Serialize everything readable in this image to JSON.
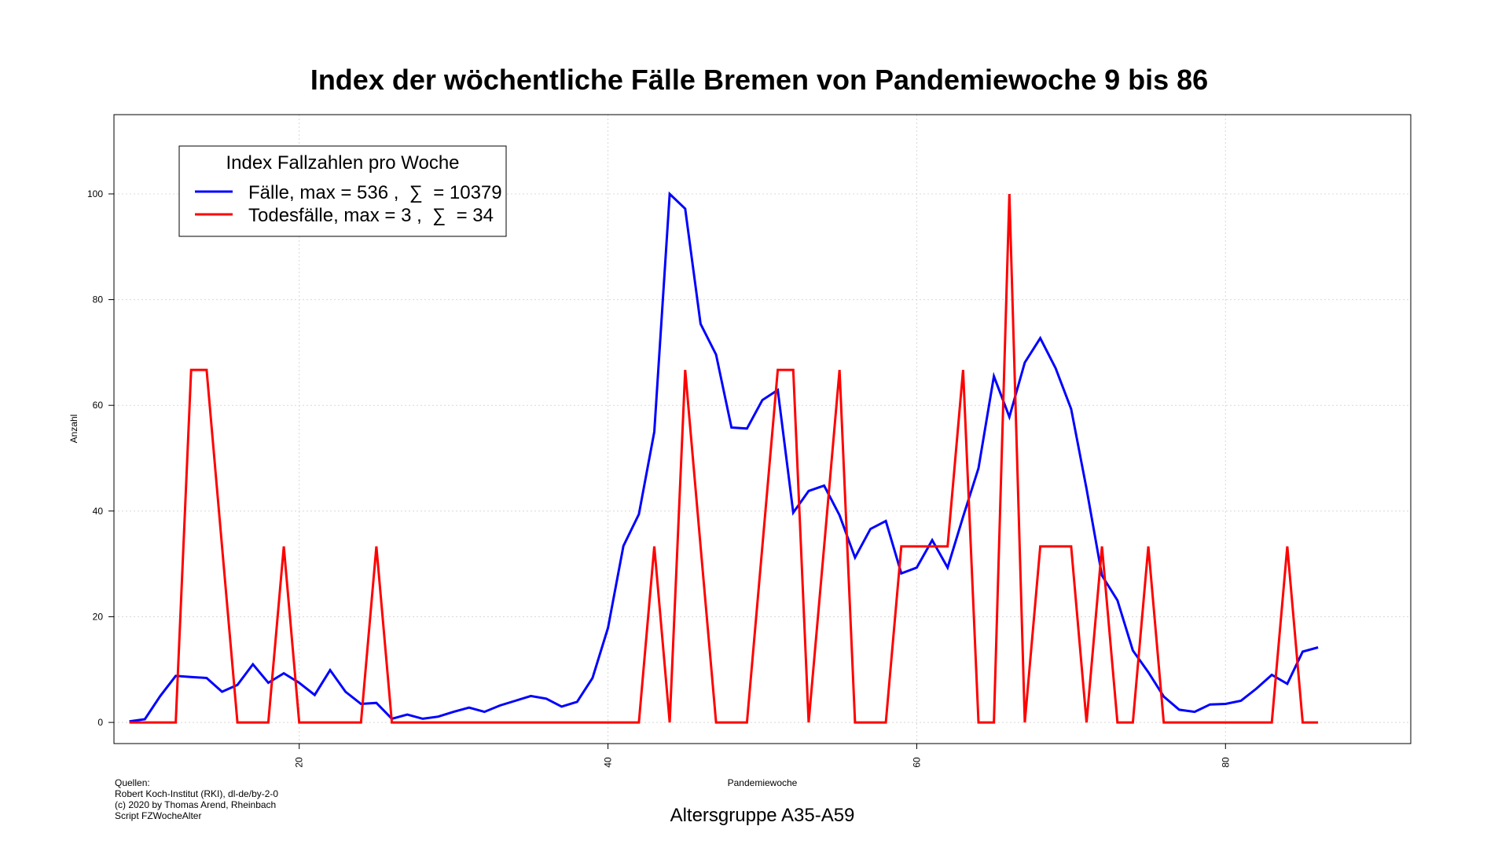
{
  "chart_data": {
    "type": "line",
    "title": "Index der wöchentliche Fälle Bremen von Pandemiewoche 9 bis 86",
    "xlabel": "Pandemiewoche",
    "ylabel": "Anzahl",
    "subtitle": "Altersgruppe A35-A59",
    "xlim": [
      8,
      92
    ],
    "ylim": [
      -4,
      115
    ],
    "x_ticks": [
      20,
      40,
      60,
      80
    ],
    "y_ticks": [
      0,
      20,
      40,
      60,
      80,
      100
    ],
    "grid": true,
    "legend": {
      "title": "Index Fallzahlen pro Woche",
      "position": "top-left",
      "entries": [
        "Fälle, max = 536 ,  ∑  = 10379",
        "Todesfälle, max = 3 ,  ∑  = 34"
      ]
    },
    "x": [
      9,
      10,
      11,
      12,
      13,
      14,
      15,
      16,
      17,
      18,
      19,
      20,
      21,
      22,
      23,
      24,
      25,
      26,
      27,
      28,
      29,
      30,
      31,
      32,
      33,
      34,
      35,
      36,
      37,
      38,
      39,
      40,
      41,
      42,
      43,
      44,
      45,
      46,
      47,
      48,
      49,
      50,
      51,
      52,
      53,
      54,
      55,
      56,
      57,
      58,
      59,
      60,
      61,
      62,
      63,
      64,
      65,
      66,
      67,
      68,
      69,
      70,
      71,
      72,
      73,
      74,
      75,
      76,
      77,
      78,
      79,
      80,
      81,
      82,
      83,
      84,
      85,
      86
    ],
    "series": [
      {
        "name": "Fälle",
        "color": "#0000ff",
        "values": [
          0.2,
          0.6,
          5.0,
          8.8,
          8.6,
          8.4,
          5.8,
          7.1,
          11.0,
          7.5,
          9.3,
          7.5,
          5.2,
          9.9,
          5.8,
          3.5,
          3.7,
          0.7,
          1.5,
          0.7,
          1.1,
          2.0,
          2.8,
          2.0,
          3.2,
          4.1,
          5.0,
          4.5,
          3.0,
          3.9,
          8.4,
          17.9,
          33.4,
          39.4,
          55.0,
          100.0,
          97.2,
          75.4,
          69.6,
          55.8,
          55.6,
          61.0,
          62.9,
          39.7,
          43.8,
          44.8,
          39.2,
          31.2,
          36.6,
          38.1,
          28.2,
          29.3,
          34.5,
          29.3,
          38.9,
          48.1,
          65.5,
          57.8,
          68.1,
          72.7,
          67.0,
          59.3,
          44.2,
          27.8,
          23.1,
          13.6,
          9.5,
          4.9,
          2.4,
          2.0,
          3.4,
          3.5,
          4.1,
          6.4,
          9.0,
          7.3,
          13.4,
          14.2
        ]
      },
      {
        "name": "Todesfälle",
        "color": "#ff0000",
        "values": [
          0,
          0,
          0,
          0,
          66.7,
          66.7,
          33.3,
          0,
          0,
          0,
          33.3,
          0,
          0,
          0,
          0,
          0,
          33.3,
          0,
          0,
          0,
          0,
          0,
          0,
          0,
          0,
          0,
          0,
          0,
          0,
          0,
          0,
          0,
          0,
          0,
          33.3,
          0,
          66.7,
          33.3,
          0,
          0,
          0,
          33.3,
          66.7,
          66.7,
          0,
          33.3,
          66.7,
          0,
          0,
          0,
          33.3,
          33.3,
          33.3,
          33.3,
          66.7,
          0,
          0,
          100,
          0,
          33.3,
          33.3,
          33.3,
          0,
          33.3,
          0,
          0,
          33.3,
          0,
          0,
          0,
          0,
          0,
          0,
          0,
          0,
          33.3,
          0,
          0
        ]
      }
    ]
  },
  "source": {
    "lines": [
      "Quellen:",
      "Robert Koch-Institut (RKI), dl-de/by-2-0",
      "(c) 2020 by Thomas Arend, Rheinbach",
      "Script FZWocheAlter"
    ]
  }
}
